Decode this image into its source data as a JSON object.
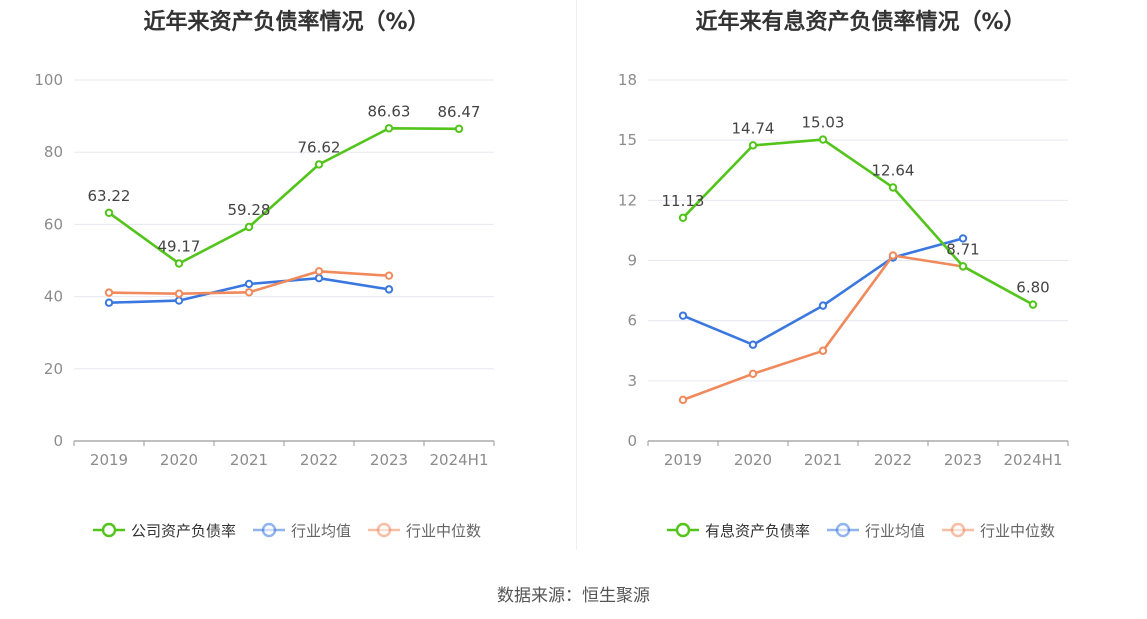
{
  "source_label": "数据来源：恒生聚源",
  "chart_data": [
    {
      "type": "line",
      "title": "近年来资产负债率情况（%）",
      "x": [
        "2019",
        "2020",
        "2021",
        "2022",
        "2023",
        "2024H1"
      ],
      "ylim": [
        0,
        100
      ],
      "yticks": [
        0,
        20,
        40,
        60,
        80,
        100
      ],
      "grid": true,
      "legend": "bottom-center",
      "series": [
        {
          "name": "公司资产负债率",
          "color": "#52c41a",
          "labeled": true,
          "values": [
            63.22,
            49.17,
            59.28,
            76.62,
            86.63,
            86.47
          ]
        },
        {
          "name": "行业均值",
          "color": "#3a78e0",
          "labeled": false,
          "values": [
            38.3,
            38.9,
            43.5,
            45.1,
            42.0,
            null
          ]
        },
        {
          "name": "行业中位数",
          "color": "#f08a5d",
          "labeled": false,
          "values": [
            41.1,
            40.8,
            41.2,
            47.0,
            45.8,
            null
          ]
        }
      ]
    },
    {
      "type": "line",
      "title": "近年来有息资产负债率情况（%）",
      "x": [
        "2019",
        "2020",
        "2021",
        "2022",
        "2023",
        "2024H1"
      ],
      "ylim": [
        0,
        18
      ],
      "yticks": [
        0,
        3,
        6,
        9,
        12,
        15,
        18
      ],
      "grid": true,
      "legend": "bottom-center",
      "series": [
        {
          "name": "有息资产负债率",
          "color": "#52c41a",
          "labeled": true,
          "values": [
            11.13,
            14.74,
            15.03,
            12.64,
            8.71,
            6.8
          ]
        },
        {
          "name": "行业均值",
          "color": "#3a78e0",
          "labeled": false,
          "values": [
            6.25,
            4.8,
            6.75,
            9.15,
            10.1,
            null
          ]
        },
        {
          "name": "行业中位数",
          "color": "#f08a5d",
          "labeled": false,
          "values": [
            2.05,
            3.35,
            4.5,
            9.25,
            8.7,
            null
          ]
        }
      ]
    }
  ]
}
